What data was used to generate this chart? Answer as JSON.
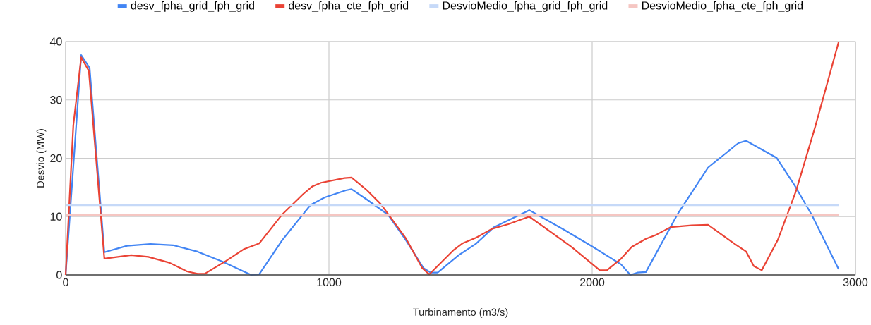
{
  "chart_data": {
    "type": "line",
    "xlabel": "Turbinamento (m3/s)",
    "ylabel": "Desvio (MW)",
    "xlim": [
      0,
      3000
    ],
    "ylim": [
      0,
      40
    ],
    "xticks": [
      0,
      1000,
      2000,
      3000
    ],
    "yticks": [
      0,
      10,
      20,
      30,
      40
    ],
    "grid": true,
    "legend": "top",
    "series": [
      {
        "name": "desv_fpha_grid_fph_grid",
        "color": "#4285f4",
        "x": [
          0,
          59,
          91,
          147,
          233,
          322,
          408,
          501,
          595,
          676,
          705,
          735,
          823,
          930,
          984,
          1064,
          1086,
          1145,
          1225,
          1292,
          1359,
          1386,
          1413,
          1493,
          1560,
          1627,
          1761,
          1895,
          2003,
          2110,
          2145,
          2172,
          2204,
          2324,
          2440,
          2555,
          2585,
          2700,
          2767,
          2834,
          2936
        ],
        "values": [
          0,
          37.7,
          35.5,
          3.9,
          5.0,
          5.3,
          5.1,
          4.0,
          2.3,
          0.6,
          0,
          0.1,
          6.0,
          12.0,
          13.3,
          14.5,
          14.7,
          12.9,
          10.3,
          6.0,
          1.2,
          0.4,
          0.4,
          3.4,
          5.4,
          8.2,
          11.1,
          7.7,
          4.8,
          1.8,
          0,
          0.4,
          0.5,
          10.4,
          18.4,
          22.6,
          23.0,
          20.1,
          15.5,
          10.3,
          1.0
        ]
      },
      {
        "name": "desv_fpha_cte_fph_grid",
        "color": "#ea4335",
        "x": [
          0,
          29,
          59,
          88,
          147,
          249,
          314,
          394,
          461,
          501,
          528,
          609,
          676,
          735,
          823,
          903,
          938,
          970,
          1059,
          1086,
          1145,
          1198,
          1292,
          1354,
          1381,
          1472,
          1507,
          1560,
          1619,
          1681,
          1761,
          1922,
          2029,
          2056,
          2110,
          2150,
          2204,
          2244,
          2298,
          2378,
          2440,
          2539,
          2585,
          2614,
          2644,
          2705,
          2775,
          2847,
          2936
        ],
        "values": [
          0,
          25.6,
          37.3,
          35.0,
          2.8,
          3.4,
          3.1,
          2.1,
          0.6,
          0.2,
          0.2,
          2.4,
          4.4,
          5.4,
          10.4,
          13.9,
          15.2,
          15.8,
          16.6,
          16.7,
          14.5,
          12.1,
          6.3,
          1.2,
          0.1,
          4.2,
          5.4,
          6.4,
          7.9,
          8.7,
          10.0,
          4.8,
          0.8,
          0.8,
          2.8,
          4.8,
          6.2,
          6.9,
          8.2,
          8.5,
          8.6,
          5.4,
          4.0,
          1.5,
          0.8,
          6.0,
          14.5,
          25.4,
          39.9
        ]
      },
      {
        "name": "DesvioMedio_fpha_grid_fph_grid",
        "color": "#c6d9f8",
        "x": [
          0,
          2936
        ],
        "values": [
          12.0,
          12.0
        ]
      },
      {
        "name": "DesvioMedio_fpha_cte_fph_grid",
        "color": "#f5c6c2",
        "x": [
          0,
          2936
        ],
        "values": [
          10.3,
          10.3
        ]
      }
    ]
  }
}
